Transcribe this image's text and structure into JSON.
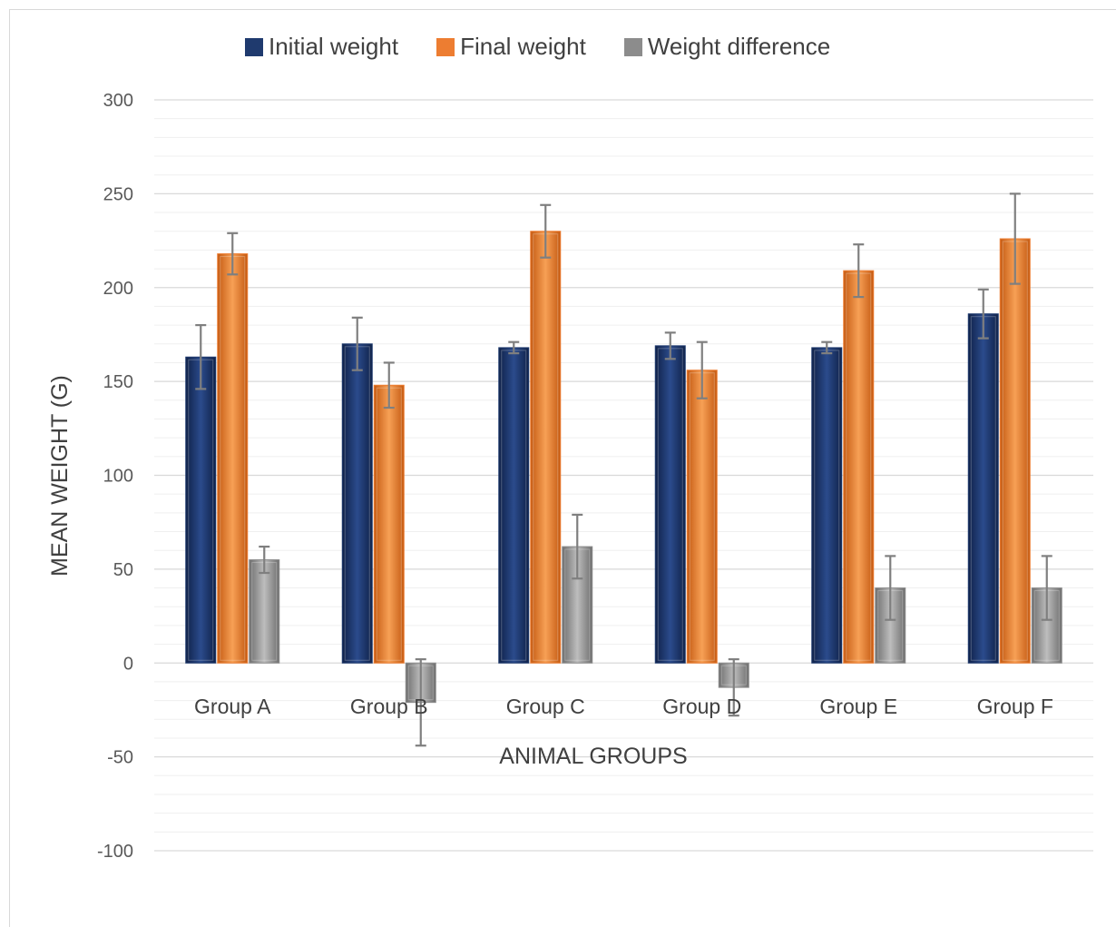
{
  "chart_data": {
    "type": "bar",
    "title": "",
    "xlabel": "ANIMAL GROUPS",
    "ylabel": "MEAN WEIGHT (G)",
    "ylim": [
      -100,
      300
    ],
    "yticks": [
      300,
      250,
      200,
      150,
      100,
      50,
      0,
      -50,
      -100
    ],
    "grid": true,
    "legend_position": "top",
    "categories": [
      "Group A",
      "Group B",
      "Group C",
      "Group D",
      "Group E",
      "Group F"
    ],
    "series": [
      {
        "name": "Initial weight",
        "color": "#1f3a6e",
        "values": [
          163,
          170,
          168,
          169,
          168,
          186
        ],
        "errors": [
          17,
          14,
          3,
          7,
          3,
          13
        ]
      },
      {
        "name": "Final weight",
        "color": "#ed7d31",
        "values": [
          218,
          148,
          230,
          156,
          209,
          226
        ],
        "errors": [
          11,
          12,
          14,
          15,
          14,
          24
        ]
      },
      {
        "name": "Weight difference",
        "color": "#8c8c8c",
        "values": [
          55,
          -21,
          62,
          -13,
          40,
          40
        ],
        "errors": [
          7,
          23,
          17,
          15,
          17,
          17
        ]
      }
    ]
  }
}
